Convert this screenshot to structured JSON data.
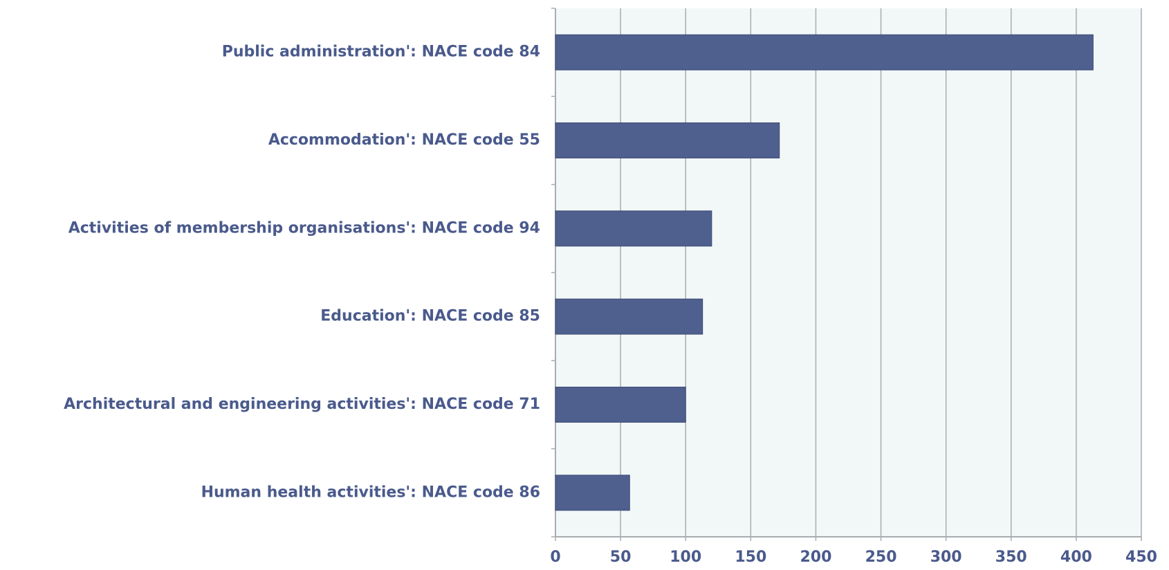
{
  "chart_data": {
    "type": "barh",
    "categories": [
      "Public administration': NACE code 84",
      "Accommodation': NACE code 55",
      "Activities of membership organisations': NACE code 94",
      "Education': NACE code 85",
      "Architectural and engineering activities': NACE code 71",
      "Human health activities': NACE code 86"
    ],
    "values": [
      413,
      172,
      120,
      113,
      100,
      57
    ],
    "color": "#4f5f8e",
    "xlim": [
      0,
      450
    ],
    "xticks": [
      0,
      50,
      100,
      150,
      200,
      250,
      300,
      350,
      400,
      450
    ],
    "grid": true
  }
}
